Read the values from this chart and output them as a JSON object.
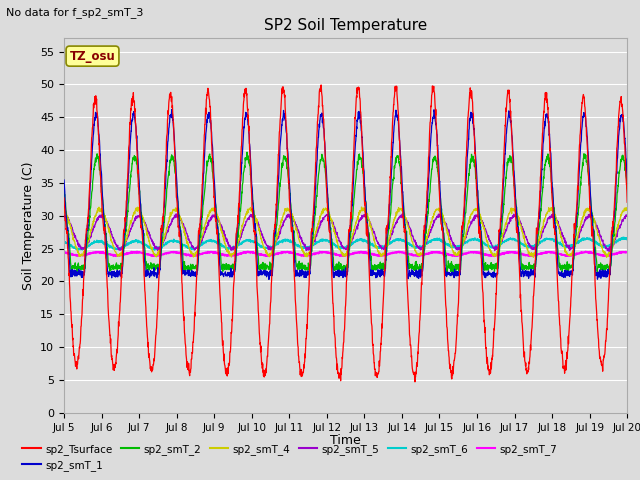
{
  "title": "SP2 Soil Temperature",
  "subtitle": "No data for f_sp2_smT_3",
  "xlabel": "Time",
  "ylabel": "Soil Temperature (C)",
  "ylim": [
    0,
    57
  ],
  "yticks": [
    0,
    5,
    10,
    15,
    20,
    25,
    30,
    35,
    40,
    45,
    50,
    55
  ],
  "xtick_labels": [
    "Jul 5",
    "Jul 6",
    "Jul 7",
    "Jul 8",
    "Jul 9",
    "Jul 10",
    "Jul 11",
    "Jul 12",
    "Jul 13",
    "Jul 14",
    "Jul 15",
    "Jul 16",
    "Jul 17",
    "Jul 18",
    "Jul 19",
    "Jul 20"
  ],
  "tz_label": "TZ_osu",
  "tz_bg": "#ffff99",
  "tz_border": "#888800",
  "background_color": "#dcdcdc",
  "series_colors": {
    "sp2_Tsurface": "#ff0000",
    "sp2_smT_1": "#0000cc",
    "sp2_smT_2": "#00bb00",
    "sp2_smT_4": "#cccc00",
    "sp2_smT_5": "#9900cc",
    "sp2_smT_6": "#00cccc",
    "sp2_smT_7": "#ff00ff"
  },
  "legend_entries": [
    {
      "label": "sp2_Tsurface",
      "color": "#ff0000"
    },
    {
      "label": "sp2_smT_1",
      "color": "#0000cc"
    },
    {
      "label": "sp2_smT_2",
      "color": "#00bb00"
    },
    {
      "label": "sp2_smT_4",
      "color": "#cccc00"
    },
    {
      "label": "sp2_smT_5",
      "color": "#9900cc"
    },
    {
      "label": "sp2_smT_6",
      "color": "#00cccc"
    },
    {
      "label": "sp2_smT_7",
      "color": "#ff00ff"
    }
  ]
}
